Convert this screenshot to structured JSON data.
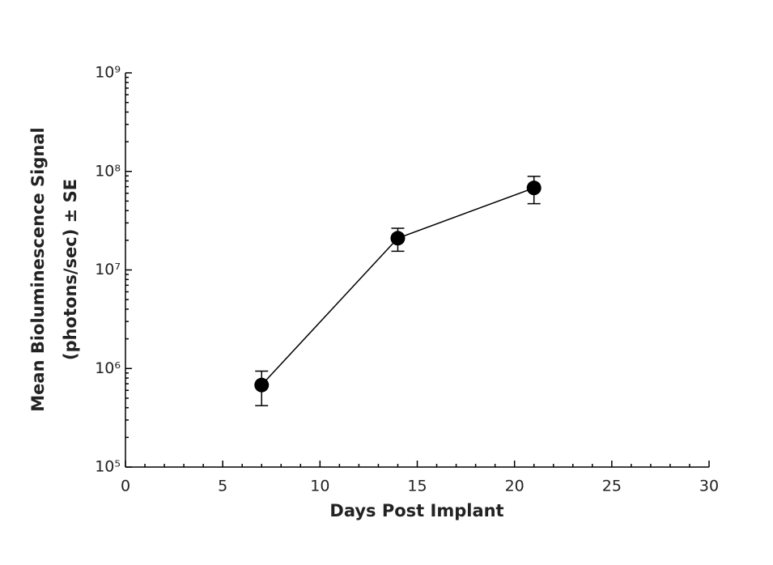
{
  "chart_data": {
    "type": "line",
    "x_label": "Days Post Implant",
    "y_label": [
      "Mean Bioluminescence Signal",
      "(photons/sec) ± SE"
    ],
    "x": [
      7,
      14,
      21
    ],
    "series": [
      {
        "color": "#000000",
        "values": [
          680000,
          21000000,
          68000000
        ],
        "errors": [
          260000,
          5500000,
          21000000
        ]
      }
    ],
    "xlim": [
      0,
      30
    ],
    "xticks": [
      0,
      5,
      10,
      15,
      20,
      25,
      30
    ],
    "ylim": [
      100000,
      1000000000
    ],
    "log_y": true,
    "yticks": [
      {
        "value": 100000,
        "label": "10⁵"
      },
      {
        "value": 1000000,
        "label": "10⁶"
      },
      {
        "value": 10000000,
        "label": "10⁷"
      },
      {
        "value": 100000000,
        "label": "10⁸"
      },
      {
        "value": 1000000000,
        "label": "10⁹"
      }
    ]
  }
}
